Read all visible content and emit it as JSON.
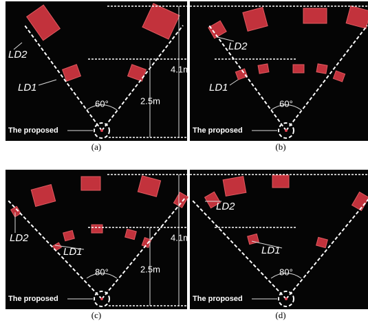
{
  "panels": [
    {
      "caption": "(a)",
      "ld2": "LD2",
      "ld1": "LD1",
      "angle": "60°",
      "far": "4.1m",
      "near": "2.5m",
      "proposed": "The proposed"
    },
    {
      "caption": "(b)",
      "ld2": "LD2",
      "ld1": "LD1",
      "angle": "60°",
      "proposed": "The proposed"
    },
    {
      "caption": "(c)",
      "ld2": "LD2",
      "ld1": "LD1",
      "angle": "80°",
      "far": "4.1m",
      "near": "2.5m",
      "proposed": "The proposed"
    },
    {
      "caption": "(d)",
      "ld2": "LD2",
      "ld1": "LD1",
      "angle": "80°",
      "proposed": "The proposed"
    }
  ]
}
